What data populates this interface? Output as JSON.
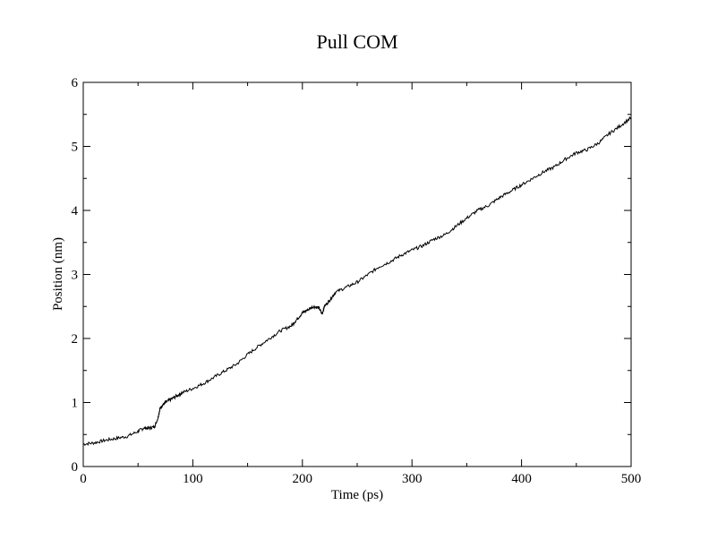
{
  "chart_data": {
    "type": "line",
    "title": "Pull COM",
    "xlabel": "Time (ps)",
    "ylabel": "Position (nm)",
    "xlim": [
      0,
      500
    ],
    "ylim": [
      0,
      6
    ],
    "xticks": [
      0,
      100,
      200,
      300,
      400,
      500
    ],
    "xtick_labels": [
      "0",
      "100",
      "200",
      "300",
      "400",
      "500"
    ],
    "yticks": [
      0,
      1,
      2,
      3,
      4,
      5,
      6
    ],
    "ytick_labels": [
      "0",
      "1",
      "2",
      "3",
      "4",
      "5",
      "6"
    ],
    "grid": false,
    "legend": false,
    "line_color": "#000000",
    "series": [
      {
        "x": [
          0,
          10,
          20,
          30,
          40,
          50,
          55,
          60,
          65,
          68,
          70,
          72,
          75,
          80,
          85,
          90,
          100,
          110,
          120,
          130,
          140,
          150,
          160,
          170,
          180,
          190,
          195,
          200,
          205,
          210,
          215,
          218,
          220,
          225,
          230,
          240,
          250,
          260,
          270,
          280,
          290,
          300,
          310,
          320,
          330,
          340,
          350,
          360,
          370,
          380,
          390,
          400,
          410,
          420,
          430,
          440,
          450,
          460,
          470,
          480,
          490,
          500
        ],
        "y": [
          0.35,
          0.37,
          0.41,
          0.44,
          0.47,
          0.55,
          0.6,
          0.6,
          0.62,
          0.75,
          0.9,
          0.95,
          1.0,
          1.05,
          1.1,
          1.15,
          1.22,
          1.3,
          1.4,
          1.5,
          1.6,
          1.75,
          1.88,
          2.0,
          2.12,
          2.2,
          2.3,
          2.4,
          2.45,
          2.5,
          2.48,
          2.38,
          2.5,
          2.6,
          2.72,
          2.8,
          2.88,
          3.0,
          3.12,
          3.2,
          3.3,
          3.38,
          3.45,
          3.55,
          3.62,
          3.75,
          3.88,
          4.0,
          4.08,
          4.2,
          4.3,
          4.4,
          4.5,
          4.6,
          4.68,
          4.8,
          4.9,
          4.95,
          5.05,
          5.2,
          5.32,
          5.45
        ]
      }
    ]
  }
}
